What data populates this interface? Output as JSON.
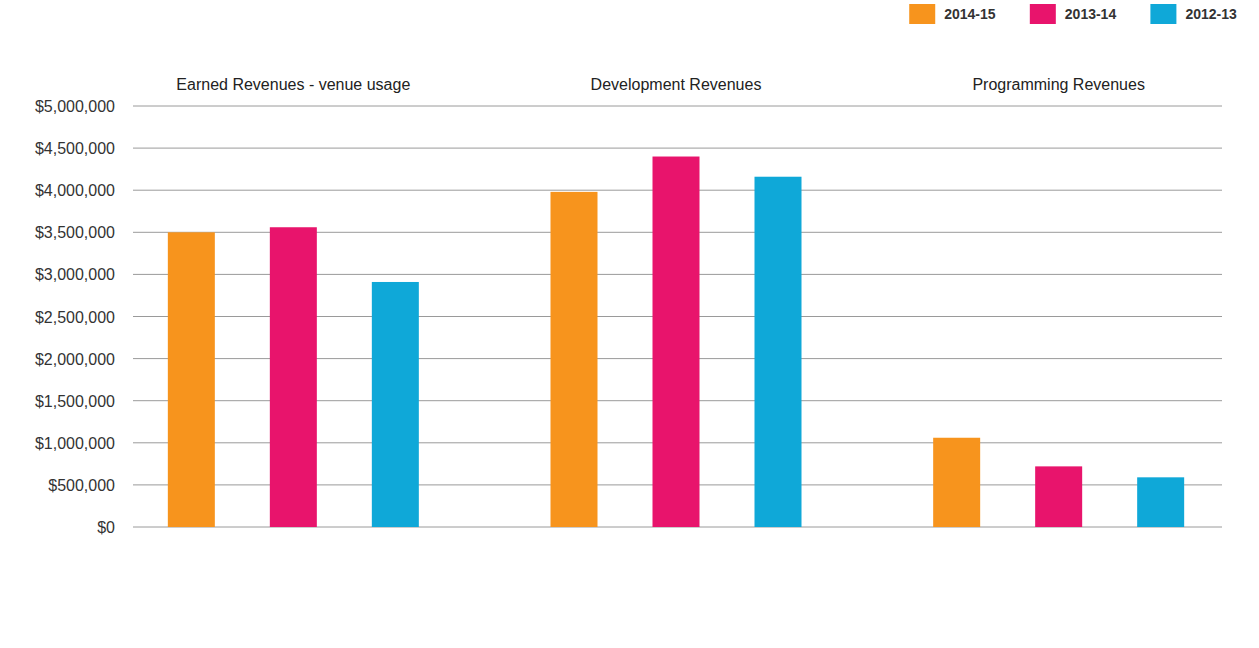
{
  "chart_data": {
    "type": "bar",
    "categories": [
      "Earned Revenues - venue usage",
      "Development Revenues",
      "Programming Revenues"
    ],
    "series": [
      {
        "name": "2014-15",
        "color": "#f7941d",
        "values": [
          3500000,
          3980000,
          1060000
        ]
      },
      {
        "name": "2013-14",
        "color": "#e8146c",
        "values": [
          3560000,
          4400000,
          720000
        ]
      },
      {
        "name": "2012-13",
        "color": "#0fa8d8",
        "values": [
          2910000,
          4160000,
          590000
        ]
      }
    ],
    "ylim": [
      0,
      5000000
    ],
    "yticks": [
      {
        "value": 0,
        "label": "$0"
      },
      {
        "value": 500000,
        "label": "$500,000"
      },
      {
        "value": 1000000,
        "label": "$1,000,000"
      },
      {
        "value": 1500000,
        "label": "$1,500,000"
      },
      {
        "value": 2000000,
        "label": "$2,000,000"
      },
      {
        "value": 2500000,
        "label": "$2,500,000"
      },
      {
        "value": 3000000,
        "label": "$3,000,000"
      },
      {
        "value": 3500000,
        "label": "$3,500,000"
      },
      {
        "value": 4000000,
        "label": "$4,000,000"
      },
      {
        "value": 4500000,
        "label": "$4,500,000"
      },
      {
        "value": 5000000,
        "label": "$5,000,000"
      }
    ],
    "grid": true,
    "legend": "top-right"
  }
}
